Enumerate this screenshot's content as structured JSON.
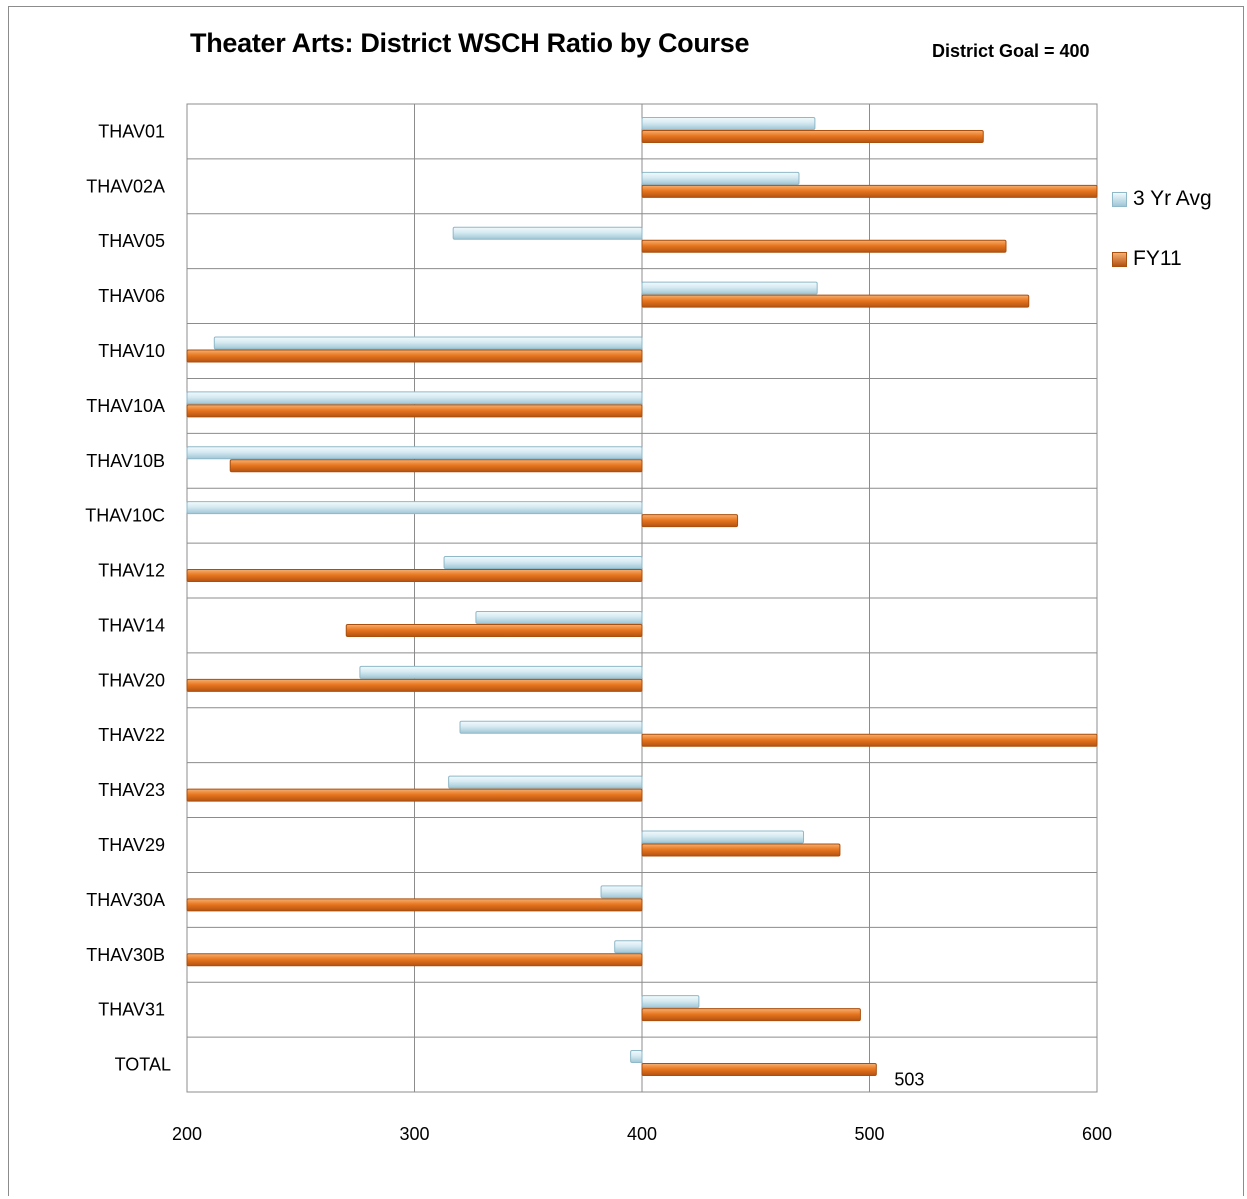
{
  "chart_data": {
    "type": "bar",
    "orientation": "horizontal",
    "title": "Theater Arts: District WSCH Ratio by Course",
    "subtitle": "District Goal = 400",
    "xlabel": "",
    "ylabel": "",
    "xlim": [
      200,
      600
    ],
    "baseline": 400,
    "x_ticks": [
      200,
      300,
      400,
      500,
      600
    ],
    "grid": true,
    "legend_position": "right",
    "categories": [
      "THAV01",
      "THAV02A",
      "THAV05",
      "THAV06",
      "THAV10",
      "THAV10A",
      "THAV10B",
      "THAV10C",
      "THAV12",
      "THAV14",
      "THAV20",
      "THAV22",
      "THAV23",
      "THAV29",
      "THAV30A",
      "THAV30B",
      "THAV31",
      "TOTAL"
    ],
    "series": [
      {
        "name": "3 Yr Avg",
        "color": "#cfe6ee",
        "values": [
          476,
          469,
          317,
          477,
          212,
          200,
          200,
          200,
          313,
          327,
          276,
          320,
          315,
          471,
          382,
          388,
          425,
          395
        ]
      },
      {
        "name": "FY11",
        "color": "#e57a25",
        "values": [
          550,
          600,
          560,
          570,
          200,
          200,
          219,
          442,
          200,
          270,
          200,
          600,
          200,
          487,
          200,
          200,
          496,
          503
        ]
      }
    ],
    "data_labels": [
      {
        "category": "TOTAL",
        "series": "FY11",
        "text": "503"
      }
    ]
  }
}
